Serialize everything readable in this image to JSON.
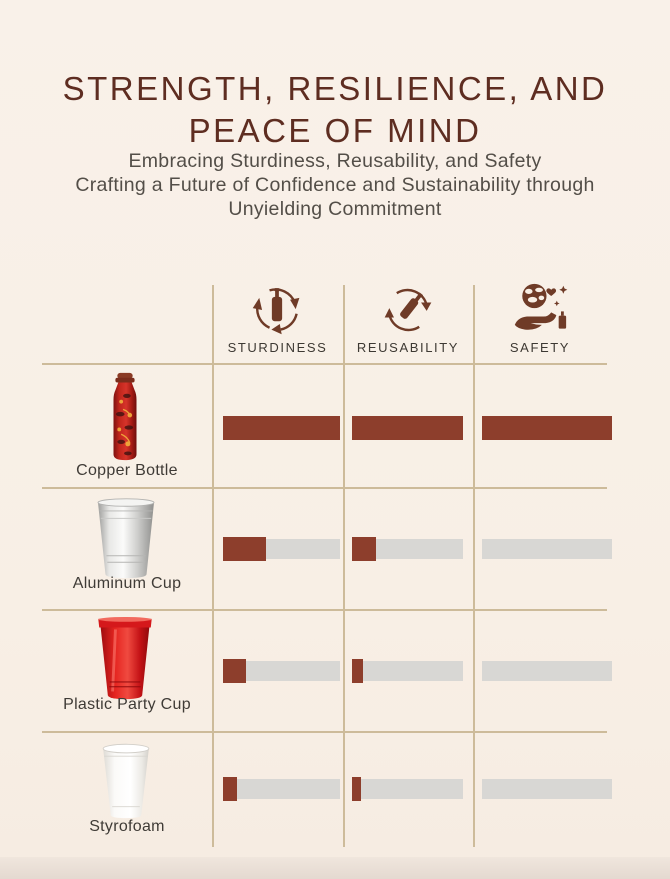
{
  "page": {
    "background_color": "#f8efe5",
    "accent_brown": "#6f3b27",
    "bar_fill_color": "#8d3e2c",
    "bar_track_color": "#d8d7d4",
    "grid_line_color": "#cdbb9a",
    "title_color": "#5e2d21"
  },
  "header": {
    "title_line1": "STRENGTH, RESILIENCE, AND",
    "title_line2": "PEACE OF MIND",
    "subtitle_line1": "Embracing Sturdiness, Reusability, and Safety",
    "subtitle_line2": "Crafting a Future of Confidence and Sustainability through",
    "subtitle_line3": "Unyielding Commitment"
  },
  "table": {
    "columns": [
      {
        "label": "STURDINESS",
        "icon": "recycle-bottle-icon"
      },
      {
        "label": "REUSABILITY",
        "icon": "circular-arrows-bottle-icon"
      },
      {
        "label": "SAFETY",
        "icon": "hand-holding-earth-icon"
      }
    ],
    "rows": [
      {
        "product": "Copper Bottle",
        "image": "copper-bottle-photo",
        "sturdiness_pct": 100,
        "reusability_pct": 100,
        "safety_pct": 100
      },
      {
        "product": "Aluminum Cup",
        "image": "aluminum-cup-photo",
        "sturdiness_pct": 37,
        "reusability_pct": 22,
        "safety_pct": 0
      },
      {
        "product": "Plastic Party Cup",
        "image": "plastic-party-cup-photo",
        "sturdiness_pct": 20,
        "reusability_pct": 10,
        "safety_pct": 0
      },
      {
        "product": "Styrofoam",
        "image": "styrofoam-cup-photo",
        "sturdiness_pct": 12,
        "reusability_pct": 8,
        "safety_pct": 0
      }
    ]
  },
  "chart_data": {
    "type": "bar",
    "title": "Strength, Resilience, and Peace of Mind",
    "categories": [
      "Copper Bottle",
      "Aluminum Cup",
      "Plastic Party Cup",
      "Styrofoam"
    ],
    "series": [
      {
        "name": "Sturdiness",
        "values": [
          100,
          37,
          20,
          12
        ]
      },
      {
        "name": "Reusability",
        "values": [
          100,
          22,
          10,
          8
        ]
      },
      {
        "name": "Safety",
        "values": [
          100,
          0,
          0,
          0
        ]
      }
    ],
    "value_unit": "percent of full rating bar",
    "ylim": [
      0,
      100
    ],
    "legend_position": "top",
    "grid": true,
    "orientation": "horizontal"
  }
}
